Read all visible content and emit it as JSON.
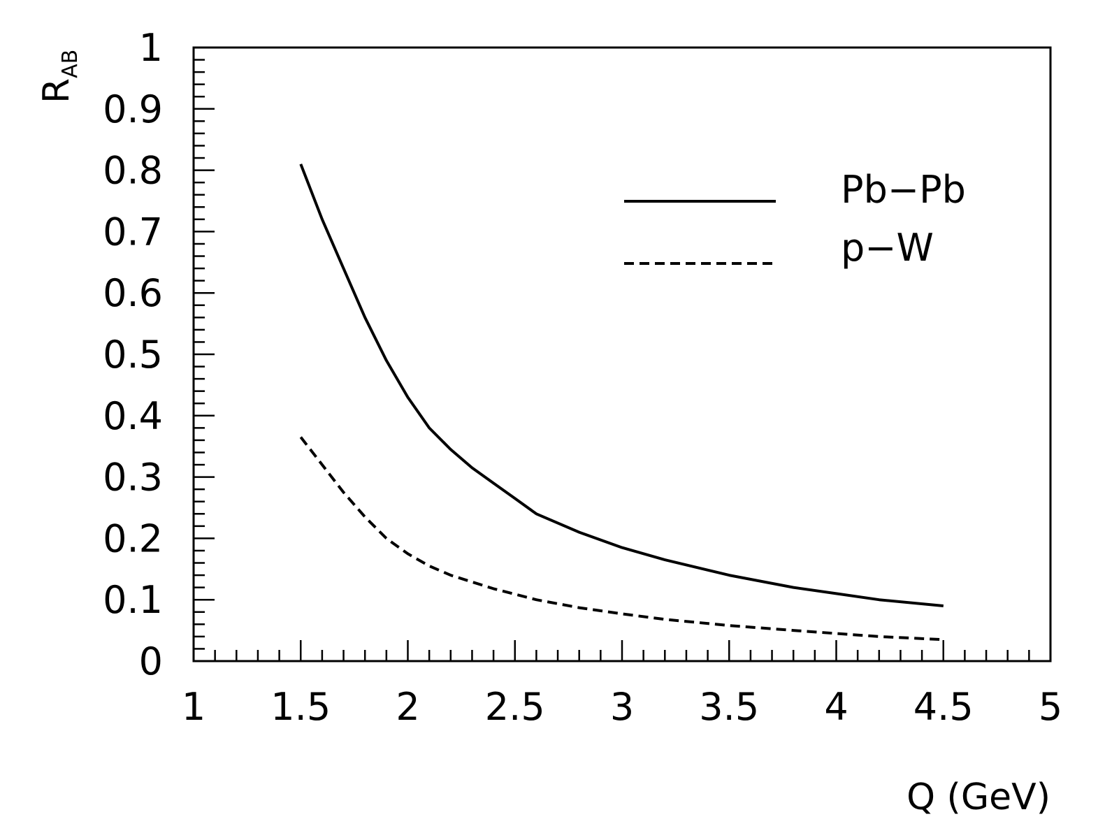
{
  "chart_data": {
    "type": "line",
    "xlabel": "Q (GeV)",
    "ylabel": "R",
    "ylabel_sub": "AB",
    "xlim": [
      1,
      5
    ],
    "ylim": [
      0,
      1
    ],
    "x_major_ticks": [
      1,
      1.5,
      2,
      2.5,
      3,
      3.5,
      4,
      4.5,
      5
    ],
    "x_tick_labels": [
      "1",
      "1.5",
      "2",
      "2.5",
      "3",
      "3.5",
      "4",
      "4.5",
      "5"
    ],
    "y_major_ticks": [
      0,
      0.1,
      0.2,
      0.3,
      0.4,
      0.5,
      0.6,
      0.7,
      0.8,
      0.9,
      1
    ],
    "y_tick_labels": [
      "0",
      "0.1",
      "0.2",
      "0.3",
      "0.4",
      "0.5",
      "0.6",
      "0.7",
      "0.8",
      "0.9",
      "1"
    ],
    "x_minor_step": 0.1,
    "y_minor_step": 0.02,
    "grid": false,
    "legend_position": "top-right",
    "series": [
      {
        "name": "Pb−Pb",
        "style": "solid",
        "color": "#000000",
        "x": [
          1.5,
          1.6,
          1.7,
          1.8,
          1.9,
          2.0,
          2.1,
          2.2,
          2.3,
          2.4,
          2.5,
          2.6,
          2.8,
          3.0,
          3.2,
          3.5,
          3.8,
          4.0,
          4.2,
          4.5
        ],
        "y": [
          0.81,
          0.72,
          0.64,
          0.56,
          0.49,
          0.43,
          0.38,
          0.345,
          0.315,
          0.29,
          0.265,
          0.24,
          0.21,
          0.185,
          0.165,
          0.14,
          0.12,
          0.11,
          0.1,
          0.09
        ]
      },
      {
        "name": "p−W",
        "style": "dashed",
        "color": "#000000",
        "x": [
          1.5,
          1.6,
          1.7,
          1.8,
          1.9,
          2.0,
          2.1,
          2.2,
          2.4,
          2.6,
          2.8,
          3.0,
          3.2,
          3.5,
          3.8,
          4.0,
          4.2,
          4.5
        ],
        "y": [
          0.365,
          0.32,
          0.275,
          0.235,
          0.2,
          0.175,
          0.155,
          0.14,
          0.118,
          0.1,
          0.087,
          0.077,
          0.068,
          0.058,
          0.05,
          0.045,
          0.04,
          0.035
        ]
      }
    ]
  }
}
